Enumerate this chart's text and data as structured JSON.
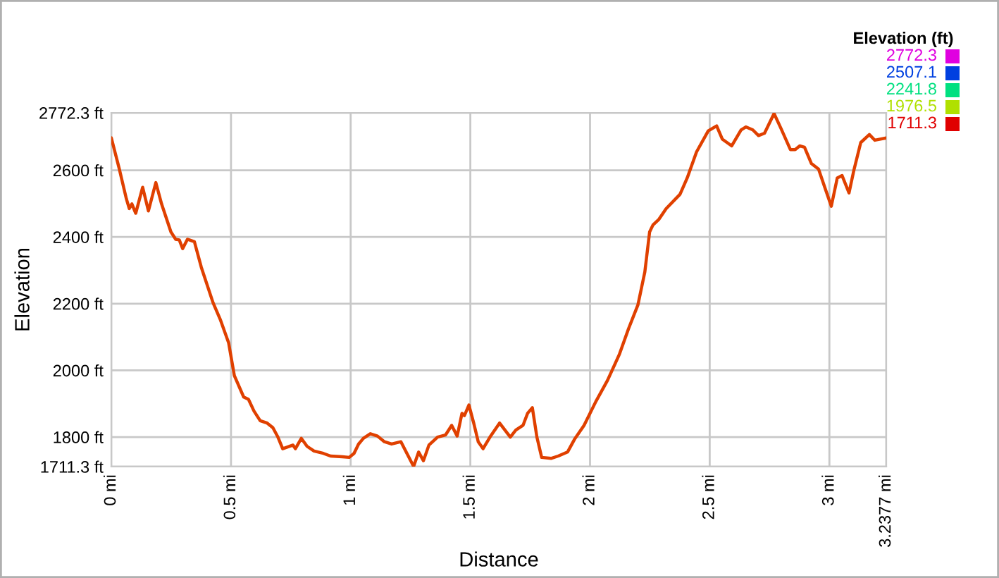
{
  "chart_data": {
    "type": "line",
    "xlabel": "Distance",
    "ylabel": "Elevation",
    "clabel": "Elevation (ft)",
    "xlim": [
      0,
      3.2377
    ],
    "ylim": [
      1711.3,
      2772.3
    ],
    "xticks": [
      {
        "value": 0,
        "label": "0 mi"
      },
      {
        "value": 0.5,
        "label": "0.5 mi"
      },
      {
        "value": 1,
        "label": "1 mi"
      },
      {
        "value": 1.5,
        "label": "1.5 mi"
      },
      {
        "value": 2,
        "label": "2 mi"
      },
      {
        "value": 2.5,
        "label": "2.5 mi"
      },
      {
        "value": 3,
        "label": "3 mi"
      },
      {
        "value": 3.2377,
        "label": "3.2377 mi"
      }
    ],
    "yticks": [
      {
        "value": 1711.3,
        "label": "1711.3 ft"
      },
      {
        "value": 1800,
        "label": "1800 ft"
      },
      {
        "value": 2000,
        "label": "2000 ft"
      },
      {
        "value": 2200,
        "label": "2200 ft"
      },
      {
        "value": 2400,
        "label": "2400 ft"
      },
      {
        "value": 2600,
        "label": "2600 ft"
      },
      {
        "value": 2772.3,
        "label": "2772.3 ft"
      }
    ],
    "cticks": [
      2772.3,
      2507.1,
      2241.8,
      1976.5,
      1711.3
    ],
    "colors": [
      "#e000e0",
      "#0040e0",
      "#00e080",
      "#b0e000",
      "#e00000"
    ],
    "grid": true,
    "marker": "none",
    "line_style": "solid",
    "series": [
      {
        "color": "#e04000",
        "x": [
          0,
          0.033,
          0.063,
          0.075,
          0.086,
          0.102,
          0.131,
          0.155,
          0.186,
          0.21,
          0.249,
          0.269,
          0.284,
          0.298,
          0.318,
          0.347,
          0.376,
          0.425,
          0.455,
          0.49,
          0.514,
          0.553,
          0.573,
          0.596,
          0.622,
          0.651,
          0.675,
          0.696,
          0.716,
          0.759,
          0.769,
          0.794,
          0.818,
          0.847,
          0.886,
          0.916,
          0.965,
          0.994,
          1.014,
          1.033,
          1.053,
          1.082,
          1.112,
          1.141,
          1.171,
          1.21,
          1.235,
          1.263,
          1.284,
          1.304,
          1.327,
          1.363,
          1.396,
          1.422,
          1.445,
          1.465,
          1.475,
          1.494,
          1.514,
          1.533,
          1.553,
          1.582,
          1.622,
          1.667,
          1.69,
          1.72,
          1.739,
          1.759,
          1.778,
          1.798,
          1.837,
          1.867,
          1.906,
          1.935,
          1.975,
          2.024,
          2.073,
          2.122,
          2.161,
          2.2,
          2.229,
          2.249,
          2.263,
          2.288,
          2.318,
          2.376,
          2.406,
          2.445,
          2.494,
          2.529,
          2.553,
          2.592,
          2.631,
          2.651,
          2.68,
          2.704,
          2.729,
          2.769,
          2.798,
          2.837,
          2.857,
          2.876,
          2.896,
          2.925,
          2.955,
          2.984,
          3.008,
          3.033,
          3.053,
          3.082,
          3.102,
          3.131,
          3.167,
          3.19,
          3.2377
        ],
        "values": [
          2697,
          2605,
          2514,
          2485,
          2499,
          2471,
          2549,
          2478,
          2563,
          2499,
          2415,
          2393,
          2391,
          2365,
          2393,
          2386,
          2309,
          2203,
          2153,
          2083,
          1984,
          1920,
          1913,
          1878,
          1849,
          1842,
          1828,
          1800,
          1765,
          1776,
          1765,
          1796,
          1772,
          1758,
          1751,
          1743,
          1741,
          1739,
          1751,
          1779,
          1796,
          1810,
          1803,
          1786,
          1779,
          1786,
          1751,
          1712,
          1755,
          1729,
          1776,
          1800,
          1806,
          1835,
          1803,
          1871,
          1864,
          1896,
          1842,
          1786,
          1765,
          1800,
          1842,
          1800,
          1821,
          1835,
          1871,
          1888,
          1800,
          1739,
          1736,
          1743,
          1755,
          1793,
          1835,
          1906,
          1970,
          2047,
          2125,
          2196,
          2295,
          2415,
          2436,
          2453,
          2485,
          2528,
          2577,
          2655,
          2718,
          2733,
          2693,
          2673,
          2721,
          2730,
          2721,
          2704,
          2711,
          2770,
          2725,
          2662,
          2662,
          2673,
          2669,
          2620,
          2603,
          2542,
          2492,
          2577,
          2584,
          2532,
          2599,
          2683,
          2707,
          2690,
          2697
        ]
      }
    ]
  }
}
